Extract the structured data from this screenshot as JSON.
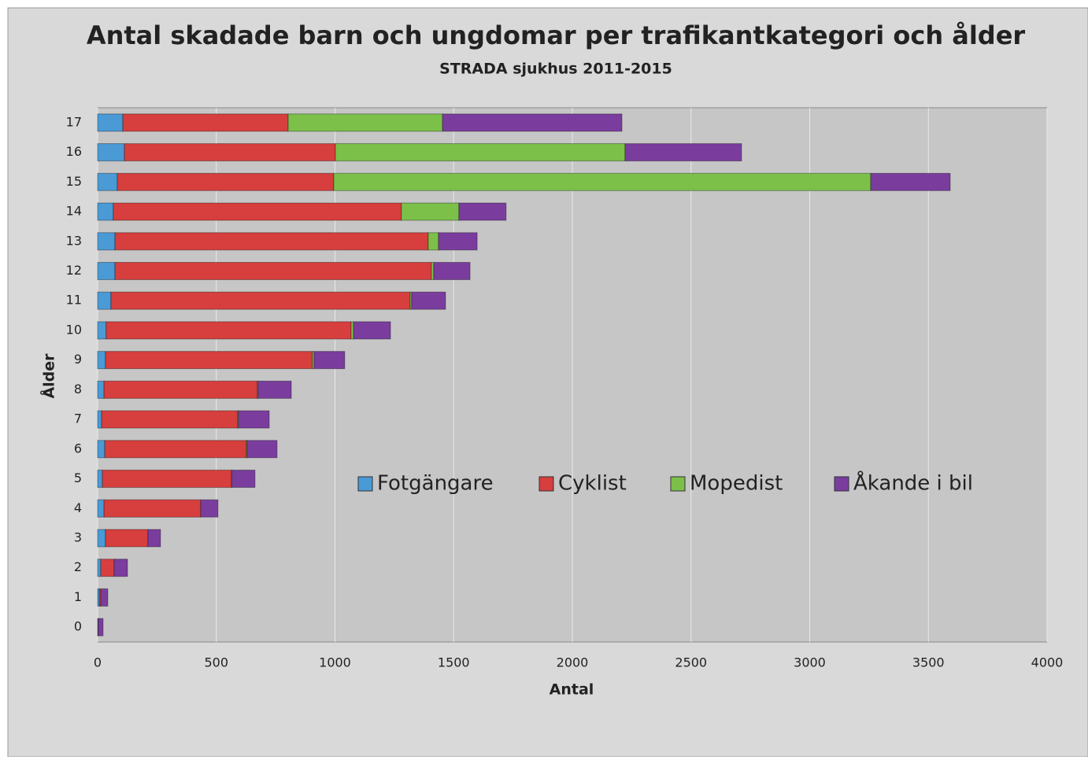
{
  "chart_data": {
    "type": "stacked-barh",
    "title": "Antal skadade barn och ungdomar per trafikantkategori och ålder",
    "subtitle": "STRADA sjukhus 2011-2015",
    "xlabel": "Antal",
    "ylabel": "Ålder",
    "categories": [
      "0",
      "1",
      "2",
      "3",
      "4",
      "5",
      "6",
      "7",
      "8",
      "9",
      "10",
      "11",
      "12",
      "13",
      "14",
      "15",
      "16",
      "17"
    ],
    "series": [
      {
        "name": "Fotgängare",
        "color": "#4a9ad6",
        "values": [
          2,
          7,
          13,
          33,
          27,
          20,
          30,
          17,
          27,
          33,
          36,
          56,
          73,
          73,
          66,
          83,
          113,
          106
        ]
      },
      {
        "name": "Cyklist",
        "color": "#d63f3d",
        "values": [
          1,
          6,
          57,
          179,
          407,
          544,
          597,
          573,
          646,
          872,
          1032,
          1261,
          1333,
          1320,
          1214,
          912,
          889,
          697
        ]
      },
      {
        "name": "Mopedist",
        "color": "#7cc04a",
        "values": [
          0,
          0,
          0,
          0,
          0,
          2,
          3,
          3,
          3,
          7,
          10,
          6,
          10,
          43,
          242,
          2262,
          1220,
          650
        ]
      },
      {
        "name": "Åkande i bil",
        "color": "#7a3d9e",
        "values": [
          20,
          30,
          56,
          53,
          73,
          97,
          126,
          130,
          140,
          129,
          156,
          143,
          153,
          163,
          199,
          335,
          491,
          756
        ]
      }
    ],
    "xlim": [
      0,
      4000
    ],
    "xticks": [
      0,
      500,
      1000,
      1500,
      2000,
      2500,
      3000,
      3500,
      4000
    ],
    "grid": true
  }
}
